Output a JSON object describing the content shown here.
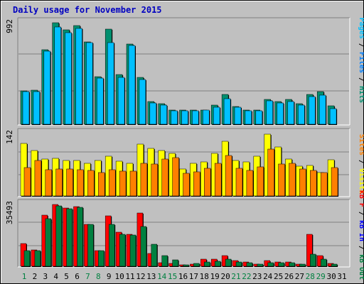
{
  "title": "Daily usage for November 2015",
  "colors": {
    "background": "#c0c0c0",
    "panel": "#c0c0c0",
    "gridline": "#7f7f7f",
    "axis_text": "#000000",
    "weekday_day": "#000000",
    "weekend_day": "#008040",
    "hits": "#00c0ff",
    "files": "#0080ff",
    "pages": "#00c0ff",
    "visits": "#ffff00",
    "sites": "#ff8000",
    "kbin": "#0000ff",
    "kbout": "#008040",
    "kbf": "#ff0000",
    "hits_bar": "#008f6f",
    "files_bar": "#00c0ff",
    "visits_bar": "#ffff00",
    "sites_bar": "#ff8000",
    "kbf_bar": "#ff0000",
    "kbout_bar": "#008040"
  },
  "chart_data": [
    {
      "type": "bar",
      "panel": "hits-files-pages",
      "ymax_label": "992",
      "ylim": [
        0,
        992
      ],
      "categories": [
        "1",
        "2",
        "3",
        "4",
        "5",
        "6",
        "7",
        "8",
        "9",
        "10",
        "11",
        "12",
        "13",
        "14",
        "15",
        "16",
        "17",
        "18",
        "19",
        "20",
        "21",
        "22",
        "23",
        "24",
        "25",
        "26",
        "27",
        "28",
        "29",
        "30",
        "31"
      ],
      "legend_parts": [
        {
          "text": "Pages",
          "color": "#00c0ff"
        },
        {
          "text": " / ",
          "color": "#000000"
        },
        {
          "text": "Files",
          "color": "#0080ff"
        },
        {
          "text": " / ",
          "color": "#000000"
        },
        {
          "text": "Hits",
          "color": "#008f6f"
        }
      ],
      "series": [
        {
          "name": "Hits",
          "values": [
            328,
            330,
            727,
            992,
            924,
            964,
            808,
            462,
            931,
            484,
            785,
            460,
            220,
            200,
            140,
            140,
            140,
            140,
            186,
            290,
            170,
            140,
            140,
            240,
            220,
            240,
            202,
            290,
            320,
            180,
            0
          ]
        },
        {
          "name": "Files",
          "values": [
            318,
            316,
            715,
            948,
            894,
            935,
            795,
            448,
            798,
            460,
            770,
            438,
            210,
            190,
            132,
            130,
            130,
            140,
            166,
            250,
            165,
            130,
            132,
            230,
            208,
            220,
            190,
            272,
            284,
            150,
            0
          ]
        }
      ]
    },
    {
      "type": "bar",
      "panel": "visits-sites",
      "ymax_label": "142",
      "ylim": [
        0,
        142
      ],
      "categories": [
        "1",
        "2",
        "3",
        "4",
        "5",
        "6",
        "7",
        "8",
        "9",
        "10",
        "11",
        "12",
        "13",
        "14",
        "15",
        "16",
        "17",
        "18",
        "19",
        "20",
        "21",
        "22",
        "23",
        "24",
        "25",
        "26",
        "27",
        "28",
        "29",
        "30",
        "31"
      ],
      "legend_parts": [
        {
          "text": "Sites",
          "color": "#ff8000"
        },
        {
          "text": " / ",
          "color": "#000000"
        },
        {
          "text": "Visits",
          "color": "#ffff00"
        }
      ],
      "series": [
        {
          "name": "Visits",
          "values": [
            120,
            103,
            84,
            85,
            80,
            80,
            75,
            80,
            90,
            79,
            75,
            117,
            108,
            104,
            97,
            62,
            74,
            77,
            97,
            124,
            80,
            77,
            90,
            140,
            112,
            84,
            68,
            69,
            54,
            82,
            0
          ]
        },
        {
          "name": "Sites",
          "values": [
            64,
            80,
            60,
            62,
            62,
            60,
            58,
            54,
            59,
            57,
            56,
            74,
            73,
            84,
            87,
            52,
            55,
            63,
            75,
            92,
            63,
            58,
            66,
            107,
            73,
            74,
            61,
            58,
            53,
            65,
            0
          ]
        }
      ]
    },
    {
      "type": "bar",
      "panel": "kbf-kbin-kbout",
      "ymax_label": "35493",
      "ylim": [
        0,
        35493
      ],
      "categories": [
        "1",
        "2",
        "3",
        "4",
        "5",
        "6",
        "7",
        "8",
        "9",
        "10",
        "11",
        "12",
        "13",
        "14",
        "15",
        "16",
        "17",
        "18",
        "19",
        "20",
        "21",
        "22",
        "23",
        "24",
        "25",
        "26",
        "27",
        "28",
        "29",
        "30",
        "31"
      ],
      "legend_parts": [
        {
          "text": "kB F",
          "color": "#ff0000"
        },
        {
          "text": " / ",
          "color": "#000000"
        },
        {
          "text": "kB In",
          "color": "#0000ff"
        },
        {
          "text": " / ",
          "color": "#000000"
        },
        {
          "text": "kB Out",
          "color": "#008040"
        }
      ],
      "series": [
        {
          "name": "kB F",
          "values": [
            13000,
            9500,
            29500,
            35400,
            33500,
            34200,
            24000,
            9000,
            29000,
            19500,
            18500,
            30700,
            7500,
            2000,
            1800,
            400,
            1200,
            4000,
            4200,
            6000,
            3100,
            2400,
            1200,
            3200,
            2500,
            2400,
            1200,
            18500,
            6000,
            1700,
            0
          ]
        },
        {
          "name": "kB Out",
          "values": [
            9000,
            9000,
            27500,
            34500,
            33000,
            34000,
            24000,
            9000,
            24000,
            18500,
            18000,
            23000,
            12500,
            6000,
            3700,
            900,
            1500,
            2500,
            3000,
            4000,
            2500,
            2000,
            1100,
            2000,
            2000,
            2000,
            1100,
            7000,
            4000,
            1400,
            0
          ]
        }
      ]
    }
  ],
  "weekend_days": [
    "1",
    "7",
    "8",
    "14",
    "15",
    "21",
    "22",
    "28",
    "29"
  ]
}
